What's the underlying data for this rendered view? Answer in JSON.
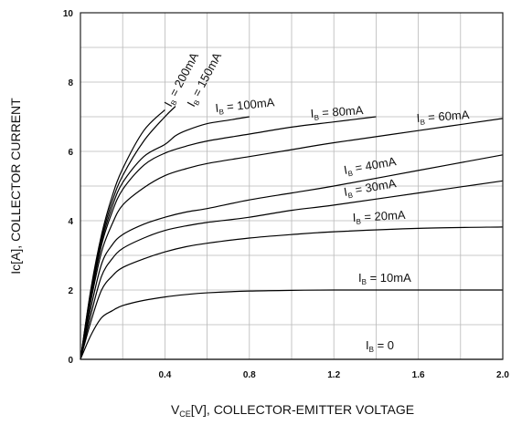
{
  "chart_data": {
    "type": "line",
    "xlabel": "V",
    "xlabel_sub": "CE",
    "xlabel_rest": "[V], COLLECTOR-EMITTER VOLTAGE",
    "ylabel": "Ic[A], COLLECTOR CURRENT",
    "xlim": [
      0,
      2.0
    ],
    "ylim": [
      0,
      10
    ],
    "x_ticks": [
      "0.4",
      "0.8",
      "1.2",
      "1.6",
      "2.0"
    ],
    "y_ticks": [
      "0",
      "2",
      "4",
      "6",
      "8",
      "10"
    ],
    "grid": true,
    "series": [
      {
        "name": "I",
        "sub": "B",
        "suffix": " = 0",
        "x": [
          0,
          2.0
        ],
        "y": [
          0,
          0
        ]
      },
      {
        "name": "I",
        "sub": "B",
        "suffix": " = 10mA",
        "x": [
          0,
          0.05,
          0.1,
          0.15,
          0.2,
          0.3,
          0.4,
          0.5,
          0.6,
          0.8,
          1.0,
          1.2,
          1.6,
          2.0
        ],
        "y": [
          0,
          0.7,
          1.2,
          1.4,
          1.55,
          1.7,
          1.8,
          1.87,
          1.92,
          1.97,
          1.99,
          2.0,
          2.0,
          2.0
        ]
      },
      {
        "name": "I",
        "sub": "B",
        "suffix": " = 20mA",
        "x": [
          0,
          0.05,
          0.1,
          0.15,
          0.2,
          0.3,
          0.4,
          0.5,
          0.6,
          0.8,
          1.0,
          1.2,
          1.6,
          2.0
        ],
        "y": [
          0,
          1.1,
          2.0,
          2.4,
          2.65,
          2.9,
          3.1,
          3.25,
          3.35,
          3.5,
          3.6,
          3.68,
          3.78,
          3.82
        ]
      },
      {
        "name": "I",
        "sub": "B",
        "suffix": " = 30mA",
        "x": [
          0,
          0.05,
          0.1,
          0.15,
          0.2,
          0.3,
          0.4,
          0.5,
          0.6,
          0.8,
          1.0,
          1.2,
          1.6,
          2.0
        ],
        "y": [
          0,
          1.3,
          2.4,
          2.9,
          3.2,
          3.5,
          3.72,
          3.85,
          3.95,
          4.1,
          4.3,
          4.45,
          4.8,
          5.15
        ]
      },
      {
        "name": "I",
        "sub": "B",
        "suffix": " = 40mA",
        "x": [
          0,
          0.05,
          0.1,
          0.15,
          0.2,
          0.3,
          0.4,
          0.5,
          0.6,
          0.8,
          1.0,
          1.2,
          1.6,
          2.0
        ],
        "y": [
          0,
          1.5,
          2.75,
          3.3,
          3.6,
          3.9,
          4.1,
          4.25,
          4.35,
          4.6,
          4.8,
          5.0,
          5.45,
          5.9
        ]
      },
      {
        "name": "I",
        "sub": "B",
        "suffix": " = 60mA",
        "x": [
          0,
          0.05,
          0.1,
          0.15,
          0.2,
          0.3,
          0.4,
          0.5,
          0.6,
          0.8,
          1.0,
          1.2,
          1.6,
          2.0
        ],
        "y": [
          0,
          1.7,
          3.1,
          3.9,
          4.45,
          4.95,
          5.3,
          5.5,
          5.65,
          5.85,
          6.05,
          6.25,
          6.6,
          6.95
        ]
      },
      {
        "name": "I",
        "sub": "B",
        "suffix": " = 80mA",
        "x": [
          0,
          0.05,
          0.1,
          0.15,
          0.2,
          0.3,
          0.4,
          0.5,
          0.6,
          0.8,
          1.0,
          1.2,
          1.4
        ],
        "y": [
          0,
          1.8,
          3.3,
          4.25,
          4.9,
          5.6,
          5.95,
          6.15,
          6.3,
          6.5,
          6.7,
          6.85,
          7.0
        ]
      },
      {
        "name": "I",
        "sub": "B",
        "suffix": " = 100mA",
        "x": [
          0,
          0.05,
          0.1,
          0.15,
          0.2,
          0.3,
          0.4,
          0.45,
          0.5,
          0.6,
          0.7,
          0.8
        ],
        "y": [
          0,
          1.9,
          3.4,
          4.4,
          5.1,
          5.85,
          6.2,
          6.45,
          6.6,
          6.8,
          6.9,
          7.0
        ]
      },
      {
        "name": "I",
        "sub": "B",
        "suffix": " = 150mA",
        "x": [
          0,
          0.05,
          0.1,
          0.15,
          0.2,
          0.3,
          0.4,
          0.45
        ],
        "y": [
          0,
          2.0,
          3.5,
          4.55,
          5.3,
          6.3,
          7.0,
          7.3
        ]
      },
      {
        "name": "I",
        "sub": "B",
        "suffix": " = 200mA",
        "x": [
          0,
          0.05,
          0.1,
          0.15,
          0.2,
          0.3,
          0.4
        ],
        "y": [
          0,
          2.05,
          3.6,
          4.7,
          5.5,
          6.6,
          7.2
        ]
      }
    ]
  }
}
